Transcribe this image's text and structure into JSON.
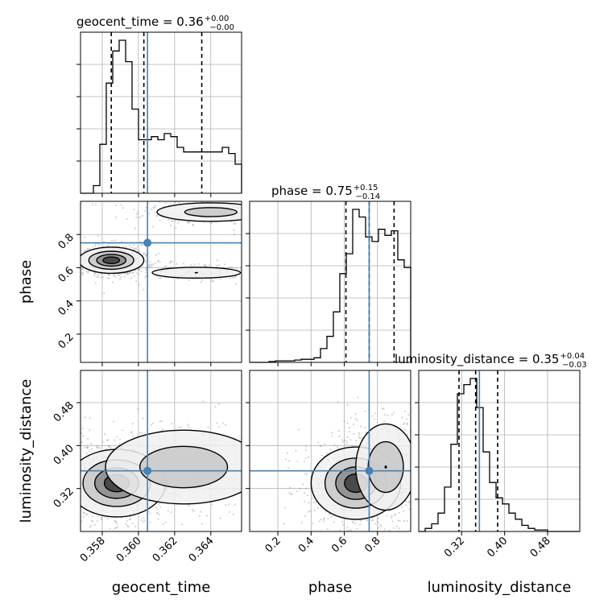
{
  "chart_data": {
    "type": "corner",
    "colors": {
      "truth": "#4682b4",
      "hist": "#000000",
      "points": "#808080"
    },
    "parameters": [
      {
        "name": "geocent_time",
        "axis_label": "geocent_time",
        "range": [
          0.3568,
          0.3657
        ],
        "ticks": [
          "0.358",
          "0.360",
          "0.362",
          "0.364"
        ],
        "tick_values": [
          0.358,
          0.36,
          0.362,
          0.364
        ],
        "truth": 0.3605,
        "quantiles": [
          0.3585,
          0.3603,
          0.3635
        ]
      },
      {
        "name": "phase",
        "axis_label": "phase",
        "range": [
          0.03,
          1.0
        ],
        "ticks": [
          "0.2",
          "0.4",
          "0.6",
          "0.8"
        ],
        "tick_values": [
          0.2,
          0.4,
          0.6,
          0.8
        ],
        "truth": 0.75,
        "quantiles": [
          0.61,
          0.75,
          0.9
        ]
      },
      {
        "name": "luminosity_distance",
        "axis_label": "luminosity_distance",
        "range": [
          0.24,
          0.54
        ],
        "ticks": [
          "0.32",
          "0.40",
          "0.48"
        ],
        "tick_values": [
          0.32,
          0.4,
          0.48
        ],
        "truth": 0.353,
        "quantiles": [
          0.315,
          0.346,
          0.387
        ]
      }
    ],
    "titles": [
      {
        "main": "geocent_time = 0.36",
        "sup": "+0.00",
        "sub": "−0.00"
      },
      {
        "main": "phase = 0.75",
        "sup": "+0.15",
        "sub": "−0.14"
      },
      {
        "main": "luminosity_distance = 0.35",
        "sup": "+0.04",
        "sub": "−0.03"
      }
    ],
    "histograms": [
      {
        "parameter": "geocent_time",
        "values": [
          0.0,
          0.0,
          0.05,
          0.32,
          0.72,
          0.93,
          1.0,
          0.86,
          0.55,
          0.35,
          0.35,
          0.37,
          0.35,
          0.39,
          0.37,
          0.3,
          0.27,
          0.27,
          0.27,
          0.27,
          0.27,
          0.27,
          0.3,
          0.26,
          0.19
        ]
      },
      {
        "parameter": "phase",
        "values": [
          0.0,
          0.0,
          0.0,
          0.005,
          0.01,
          0.01,
          0.01,
          0.015,
          0.02,
          0.02,
          0.03,
          0.09,
          0.17,
          0.33,
          0.58,
          0.71,
          1.0,
          0.95,
          0.82,
          0.79,
          0.87,
          0.83,
          0.86,
          0.67,
          0.62
        ]
      },
      {
        "parameter": "luminosity_distance",
        "values": [
          0.0,
          0.02,
          0.05,
          0.12,
          0.29,
          0.57,
          0.9,
          0.96,
          1.0,
          0.81,
          0.52,
          0.32,
          0.22,
          0.18,
          0.12,
          0.08,
          0.04,
          0.02,
          0.01,
          0.01,
          0.0,
          0.0,
          0.0,
          0.0,
          0.0
        ]
      }
    ],
    "contours_2d": [
      {
        "x": "geocent_time",
        "y": "phase",
        "modes": [
          {
            "x": 0.3585,
            "y": 0.645,
            "sx": 0.0008,
            "sy": 0.035,
            "w": 1.0
          },
          {
            "x": 0.364,
            "y": 0.935,
            "sx": 0.0016,
            "sy": 0.03,
            "w": 0.45
          },
          {
            "x": 0.3632,
            "y": 0.57,
            "sx": 0.0015,
            "sy": 0.02,
            "w": 0.3
          }
        ]
      },
      {
        "x": "geocent_time",
        "y": "luminosity_distance",
        "modes": [
          {
            "x": 0.3588,
            "y": 0.33,
            "sx": 0.0012,
            "sy": 0.028,
            "w": 1.0
          },
          {
            "x": 0.3625,
            "y": 0.36,
            "sx": 0.0022,
            "sy": 0.035,
            "w": 0.55
          }
        ]
      },
      {
        "x": "phase",
        "y": "luminosity_distance",
        "modes": [
          {
            "x": 0.67,
            "y": 0.33,
            "sx": 0.12,
            "sy": 0.03,
            "w": 1.0
          },
          {
            "x": 0.85,
            "y": 0.36,
            "sx": 0.09,
            "sy": 0.04,
            "w": 0.6
          }
        ]
      }
    ]
  }
}
